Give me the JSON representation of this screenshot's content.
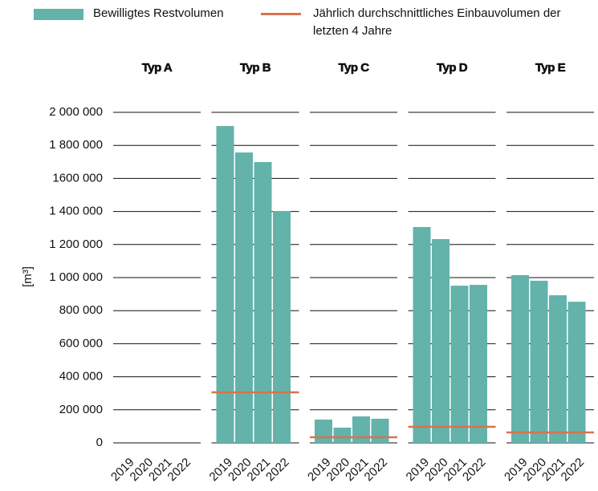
{
  "chart_data": {
    "type": "bar",
    "ylabel": "[m³]",
    "ylim": [
      0,
      2000000
    ],
    "yticks": [
      {
        "value": 0,
        "label": "0"
      },
      {
        "value": 200000,
        "label": "200 000"
      },
      {
        "value": 400000,
        "label": "400 000"
      },
      {
        "value": 600000,
        "label": "600 000"
      },
      {
        "value": 800000,
        "label": "800 000"
      },
      {
        "value": 1000000,
        "label": "1 000 000"
      },
      {
        "value": 1200000,
        "label": "1 200 000"
      },
      {
        "value": 1400000,
        "label": "1 400 000"
      },
      {
        "value": 1600000,
        "label": "1600 000"
      },
      {
        "value": 1800000,
        "label": "1 800 000"
      },
      {
        "value": 2000000,
        "label": "2 000 000"
      }
    ],
    "grid": true,
    "categories": [
      "2019",
      "2020",
      "2021",
      "2022"
    ],
    "series": [
      {
        "name": "Bewilligtes Restvolumen",
        "color": "#63b3aa"
      },
      {
        "name": "Jährlich durchschnittliches Einbauvolumen der letzten 4 Jahre",
        "color": "#d9734e"
      }
    ],
    "panels": [
      {
        "title": "Typ A",
        "values": [
          null,
          null,
          null,
          null
        ],
        "average": null
      },
      {
        "title": "Typ B",
        "values": [
          1917000,
          1757000,
          1699000,
          1403000
        ],
        "average": 306000
      },
      {
        "title": "Typ C",
        "values": [
          141000,
          92000,
          160000,
          146000
        ],
        "average": 34000
      },
      {
        "title": "Typ D",
        "values": [
          1306000,
          1233000,
          951000,
          956000
        ],
        "average": 97000
      },
      {
        "title": "Typ E",
        "values": [
          1015000,
          981000,
          893000,
          854000
        ],
        "average": 63000
      }
    ]
  }
}
